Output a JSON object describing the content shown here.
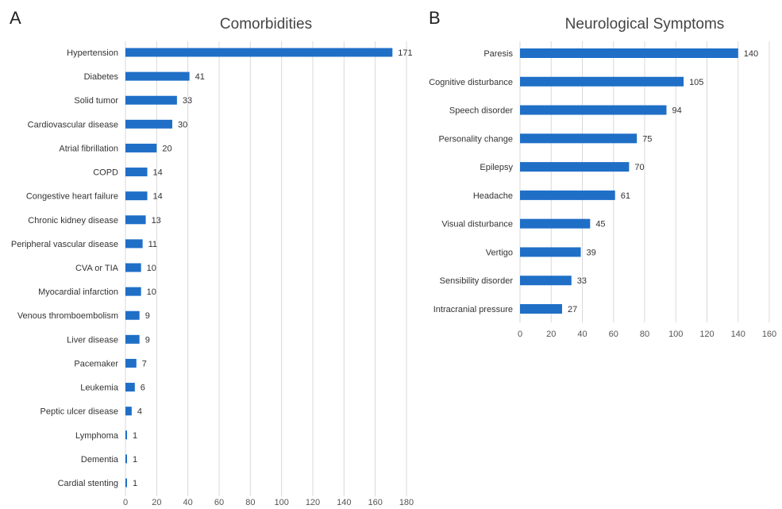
{
  "panels": {
    "a": {
      "letter": "A"
    },
    "b": {
      "letter": "B"
    }
  },
  "chart_data": [
    {
      "type": "bar",
      "orientation": "horizontal",
      "title": "Comorbidities",
      "categories": [
        "Hypertension",
        "Diabetes",
        "Solid tumor",
        "Cardiovascular disease",
        "Atrial fibrillation",
        "COPD",
        "Congestive heart failure",
        "Chronic kidney disease",
        "Peripheral vascular disease",
        "CVA or TIA",
        "Myocardial infarction",
        "Venous thromboembolism",
        "Liver disease",
        "Pacemaker",
        "Leukemia",
        "Peptic ulcer disease",
        "Lymphoma",
        "Dementia",
        "Cardial stenting"
      ],
      "values": [
        171,
        41,
        33,
        30,
        20,
        14,
        14,
        13,
        11,
        10,
        10,
        9,
        9,
        7,
        6,
        4,
        1,
        1,
        1
      ],
      "xlim": [
        0,
        180
      ],
      "xticks": [
        0,
        20,
        40,
        60,
        80,
        100,
        120,
        140,
        160,
        180
      ],
      "grid": "vertical",
      "bar_color": "#1f6fc7"
    },
    {
      "type": "bar",
      "orientation": "horizontal",
      "title": "Neurological Symptoms",
      "categories": [
        "Paresis",
        "Cognitive disturbance",
        "Speech disorder",
        "Personality change",
        "Epilepsy",
        "Headache",
        "Visual disturbance",
        "Vertigo",
        "Sensibility disorder",
        "Intracranial pressure"
      ],
      "values": [
        140,
        105,
        94,
        75,
        70,
        61,
        45,
        39,
        33,
        27
      ],
      "xlim": [
        0,
        160
      ],
      "xticks": [
        0,
        20,
        40,
        60,
        80,
        100,
        120,
        140,
        160
      ],
      "grid": "vertical",
      "bar_color": "#1f6fc7"
    }
  ]
}
